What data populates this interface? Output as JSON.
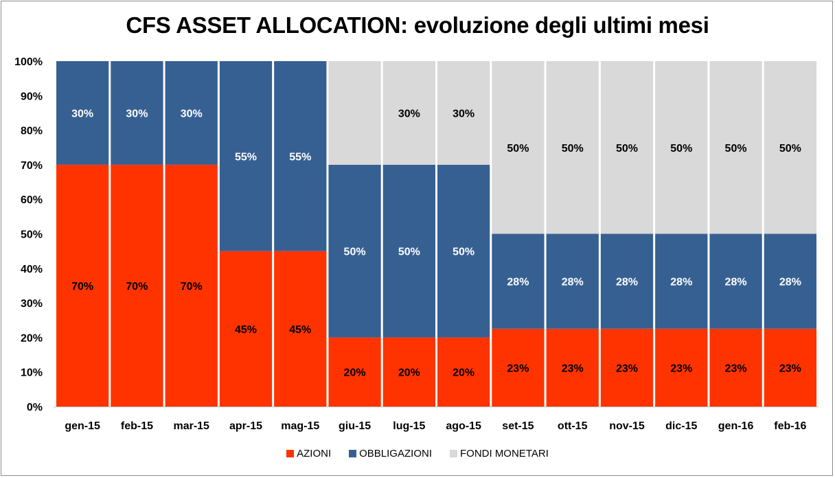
{
  "chart_data": {
    "type": "bar",
    "stacked": true,
    "title": "CFS ASSET ALLOCATION: evoluzione degli ultimi mesi",
    "xlabel": "",
    "ylabel": "",
    "ylim": [
      0,
      100
    ],
    "yticks": [
      "0%",
      "10%",
      "20%",
      "30%",
      "40%",
      "50%",
      "60%",
      "70%",
      "80%",
      "90%",
      "100%"
    ],
    "grid": false,
    "legend_position": "bottom",
    "categories": [
      "gen-15",
      "feb-15",
      "mar-15",
      "apr-15",
      "mag-15",
      "giu-15",
      "lug-15",
      "ago-15",
      "set-15",
      "ott-15",
      "nov-15",
      "dic-15",
      "gen-16",
      "feb-16"
    ],
    "series": [
      {
        "name": "AZIONI",
        "color": "#ff3300",
        "label_color": "#000000",
        "values": [
          70,
          70,
          70,
          45,
          45,
          20,
          20,
          20,
          22.5,
          22.5,
          22.5,
          22.5,
          22.5,
          22.5
        ],
        "labels": [
          "70%",
          "70%",
          "70%",
          "45%",
          "45%",
          "20%",
          "20%",
          "20%",
          "23%",
          "23%",
          "23%",
          "23%",
          "23%",
          "23%"
        ]
      },
      {
        "name": "OBBLIGAZIONI",
        "color": "#376092",
        "label_color": "#ffffff",
        "values": [
          30,
          30,
          30,
          55,
          55,
          50,
          50,
          50,
          27.5,
          27.5,
          27.5,
          27.5,
          27.5,
          27.5
        ],
        "labels": [
          "30%",
          "30%",
          "30%",
          "55%",
          "55%",
          "50%",
          "50%",
          "50%",
          "28%",
          "28%",
          "28%",
          "28%",
          "28%",
          "28%"
        ]
      },
      {
        "name": "FONDI MONETARI",
        "color": "#d9d9d9",
        "label_color": "#000000",
        "values": [
          0,
          0,
          0,
          0,
          0,
          30,
          30,
          30,
          50,
          50,
          50,
          50,
          50,
          50
        ],
        "labels": [
          "",
          "",
          "",
          "",
          "",
          "",
          "30%",
          "30%",
          "50%",
          "50%",
          "50%",
          "50%",
          "50%",
          "50%"
        ]
      }
    ]
  }
}
